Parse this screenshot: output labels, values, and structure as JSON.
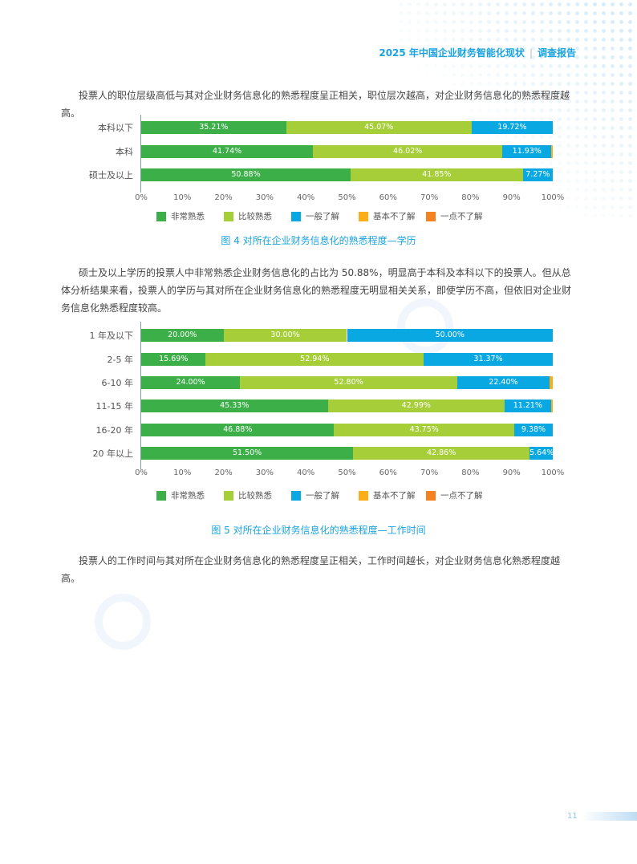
{
  "header": {
    "title": "2025 年中国企业财务智能化现状",
    "section": "调查报告"
  },
  "paragraphs": [
    "投票人的职位层级高低与其对企业财务信息化的熟悉程度呈正相关，职位层次越高，对企业财务信息化的熟悉程度越高。",
    "硕士及以上学历的投票人中非常熟悉企业财务信息化的占比为 50.88%，明显高于本科及本科以下的投票人。但从总体分析结果来看，投票人的学历与其对所在企业财务信息化的熟悉程度无明显相关关系，即使学历不高，但依旧对企业财务信息化熟悉程度较高。",
    "投票人的工作时间与其对所在企业财务信息化的熟悉程度呈正相关，工作时间越长，对企业财务信息化熟悉程度越高。"
  ],
  "legend": [
    "非常熟悉",
    "比较熟悉",
    "一般了解",
    "基本不了解",
    "一点不了解"
  ],
  "colors": [
    "#3daf49",
    "#a6ce39",
    "#0aa8e2",
    "#fbae17",
    "#f58220"
  ],
  "chart_data": [
    {
      "type": "bar",
      "orientation": "horizontal",
      "stacked": true,
      "caption": "图 4  对所在企业财务信息化的熟悉程度—学历",
      "xlim": [
        0,
        100
      ],
      "xticks": [
        "0%",
        "10%",
        "20%",
        "30%",
        "40%",
        "50%",
        "60%",
        "70%",
        "80%",
        "90%",
        "100%"
      ],
      "categories": [
        "本科以下",
        "本科",
        "硕士及以上"
      ],
      "series": [
        {
          "name": "非常熟悉",
          "values": [
            35.21,
            41.74,
            50.88
          ]
        },
        {
          "name": "比较熟悉",
          "values": [
            45.07,
            46.02,
            41.85
          ]
        },
        {
          "name": "一般了解",
          "values": [
            19.72,
            11.93,
            7.27
          ]
        },
        {
          "name": "基本不了解",
          "values": [
            0,
            0.31,
            0
          ]
        },
        {
          "name": "一点不了解",
          "values": [
            0,
            0,
            0
          ]
        }
      ],
      "legend_position": "bottom"
    },
    {
      "type": "bar",
      "orientation": "horizontal",
      "stacked": true,
      "caption": "图 5  对所在企业财务信息化的熟悉程度—工作时间",
      "xlim": [
        0,
        100
      ],
      "xticks": [
        "0%",
        "10%",
        "20%",
        "30%",
        "40%",
        "50%",
        "60%",
        "70%",
        "80%",
        "90%",
        "100%"
      ],
      "categories": [
        "1 年及以下",
        "2-5 年",
        "6-10 年",
        "11-15 年",
        "16-20 年",
        "20 年以上"
      ],
      "series": [
        {
          "name": "非常熟悉",
          "values": [
            20.0,
            15.69,
            24.0,
            45.33,
            46.88,
            51.5
          ]
        },
        {
          "name": "比较熟悉",
          "values": [
            30.0,
            52.94,
            52.8,
            42.99,
            43.75,
            42.86
          ]
        },
        {
          "name": "一般了解",
          "values": [
            50.0,
            31.37,
            22.4,
            11.21,
            9.38,
            5.64
          ]
        },
        {
          "name": "基本不了解",
          "values": [
            0,
            0,
            0.8,
            0.47,
            0,
            0
          ]
        },
        {
          "name": "一点不了解",
          "values": [
            0,
            0,
            0,
            0,
            0,
            0
          ]
        }
      ],
      "legend_position": "bottom"
    }
  ],
  "page_number": "11"
}
